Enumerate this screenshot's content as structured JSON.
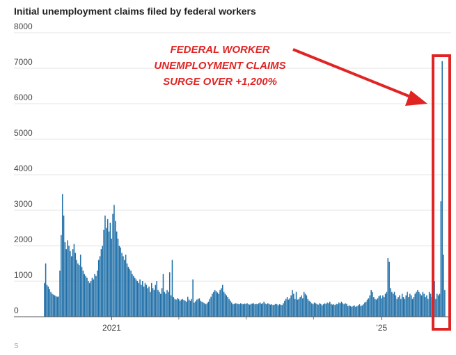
{
  "chart_data": {
    "type": "bar",
    "title": "Initial unemployment claims filed by federal workers",
    "xlabel": "",
    "ylabel": "",
    "ylim": [
      0,
      8000
    ],
    "yticks": [
      0,
      1000,
      2000,
      3000,
      4000,
      5000,
      6000,
      7000,
      8000
    ],
    "x_tick_labels": [
      "2021",
      "’25"
    ],
    "grid": true,
    "legend": "none",
    "bar_color": "#1f6fa8",
    "highlight_color": "#e02424",
    "annotation": [
      "FEDERAL WORKER",
      "UNEMPLOYMENT CLAIMS",
      "SURGE OVER +1,200%"
    ],
    "source_label": "S",
    "weeks": {
      "start": "2020-01-04",
      "interval_days": 7,
      "labels_at": [
        "2021-01-02",
        "2025-01-04"
      ]
    },
    "values": [
      950,
      1500,
      900,
      850,
      780,
      700,
      650,
      620,
      600,
      580,
      560,
      570,
      1300,
      2300,
      3450,
      2850,
      2100,
      1900,
      2150,
      2000,
      1850,
      1700,
      1900,
      2050,
      1800,
      1600,
      1500,
      1450,
      1750,
      1400,
      1300,
      1200,
      1150,
      1100,
      1000,
      950,
      1000,
      1100,
      1050,
      1200,
      1150,
      1300,
      1600,
      1700,
      1900,
      2000,
      2450,
      2850,
      2500,
      2750,
      2400,
      2650,
      2200,
      2900,
      3150,
      2700,
      2400,
      2200,
      2000,
      1950,
      1800,
      1700,
      1600,
      1750,
      1500,
      1400,
      1350,
      1300,
      1200,
      1150,
      1100,
      1050,
      1000,
      950,
      1050,
      900,
      1000,
      850,
      950,
      900,
      800,
      850,
      700,
      950,
      800,
      750,
      900,
      1000,
      750,
      700,
      650,
      800,
      1200,
      700,
      650,
      750,
      700,
      1250,
      600,
      1600,
      550,
      500,
      480,
      520,
      500,
      450,
      480,
      500,
      470,
      450,
      420,
      560,
      480,
      450,
      500,
      1050,
      400,
      430,
      480,
      500,
      520,
      450,
      420,
      400,
      380,
      350,
      380,
      420,
      500,
      560,
      650,
      700,
      750,
      720,
      680,
      650,
      750,
      800,
      900,
      700,
      650,
      600,
      550,
      500,
      450,
      400,
      350,
      360,
      380,
      370,
      360,
      350,
      380,
      360,
      350,
      370,
      360,
      380,
      350,
      340,
      360,
      370,
      380,
      350,
      360,
      350,
      380,
      400,
      360,
      380,
      420,
      370,
      350,
      380,
      360,
      340,
      350,
      330,
      340,
      360,
      350,
      320,
      350,
      340,
      330,
      380,
      450,
      500,
      550,
      480,
      520,
      600,
      750,
      650,
      500,
      700,
      480,
      500,
      550,
      600,
      520,
      700,
      650,
      600,
      500,
      450,
      420,
      380,
      350,
      400,
      380,
      360,
      340,
      380,
      360,
      320,
      350,
      380,
      360,
      400,
      380,
      420,
      360,
      340,
      350,
      330,
      360,
      350,
      400,
      380,
      420,
      380,
      350,
      380,
      360,
      300,
      320,
      300,
      280,
      300,
      320,
      280,
      300,
      320,
      350,
      300,
      320,
      350,
      400,
      420,
      480,
      520,
      600,
      750,
      700,
      550,
      500,
      480,
      520,
      580,
      600,
      520,
      600,
      550,
      650,
      700,
      1650,
      1550,
      800,
      700,
      650,
      700,
      600,
      500,
      550,
      600,
      500,
      650,
      550,
      500,
      600,
      700,
      550,
      650,
      600,
      500,
      550,
      650,
      700,
      750,
      700,
      650,
      600,
      700,
      650,
      550,
      600,
      500,
      700,
      650,
      550,
      600,
      1000,
      500,
      650,
      600,
      650,
      3250,
      7200,
      1750,
      750
    ]
  }
}
